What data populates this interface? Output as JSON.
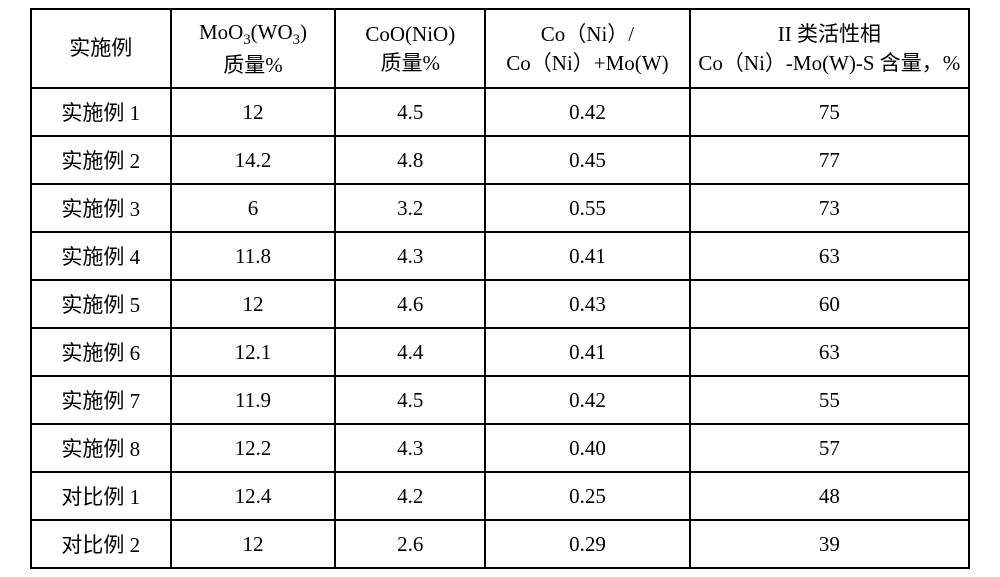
{
  "table": {
    "columns": [
      {
        "label": "实施例",
        "subscript": false
      },
      {
        "line1": "MoO₃(WO₃)",
        "line2": "质量%"
      },
      {
        "line1": "CoO(NiO)",
        "line2": "质量%"
      },
      {
        "line1": "Co（Ni）/",
        "line2": "Co（Ni）+Mo(W)"
      },
      {
        "line1": "II 类活性相",
        "line2": "Co（Ni）-Mo(W)-S 含量，%"
      }
    ],
    "rows": [
      [
        "实施例 1",
        "12",
        "4.5",
        "0.42",
        "75"
      ],
      [
        "实施例 2",
        "14.2",
        "4.8",
        "0.45",
        "77"
      ],
      [
        "实施例 3",
        "6",
        "3.2",
        "0.55",
        "73"
      ],
      [
        "实施例 4",
        "11.8",
        "4.3",
        "0.41",
        "63"
      ],
      [
        "实施例 5",
        "12",
        "4.6",
        "0.43",
        "60"
      ],
      [
        "实施例 6",
        "12.1",
        "4.4",
        "0.41",
        "63"
      ],
      [
        "实施例 7",
        "11.9",
        "4.5",
        "0.42",
        "55"
      ],
      [
        "实施例 8",
        "12.2",
        "4.3",
        "0.40",
        "57"
      ],
      [
        "对比例 1",
        "12.4",
        "4.2",
        "0.25",
        "48"
      ],
      [
        "对比例 2",
        "12",
        "2.6",
        "0.29",
        "39"
      ]
    ],
    "border_color": "#000000",
    "background_color": "#ffffff",
    "text_color": "#000000",
    "font_size_pt": 16
  }
}
